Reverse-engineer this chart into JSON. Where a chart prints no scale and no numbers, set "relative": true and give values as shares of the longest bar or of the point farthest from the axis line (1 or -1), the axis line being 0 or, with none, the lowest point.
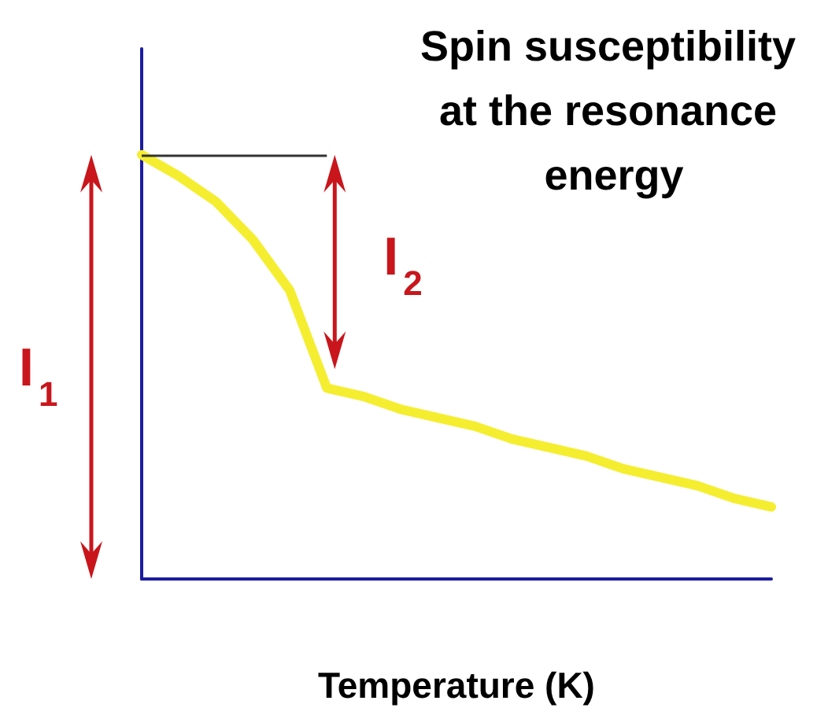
{
  "chart_data": {
    "type": "line",
    "title": "Spin susceptibility at the resonance energy",
    "xlabel": "Temperature (K)",
    "relative": true,
    "categories": [
      null,
      null,
      null,
      null,
      null,
      null,
      null,
      null,
      null,
      null,
      null,
      null,
      null,
      null,
      null,
      null,
      null,
      null
    ],
    "series": [
      {
        "color": "#f5ee30",
        "values": [
          1,
          0.95,
          0.89,
          0.8,
          0.68,
          0.45,
          0.43,
          0.4,
          0.38,
          0.36,
          0.33,
          0.31,
          0.29,
          0.26,
          0.24,
          0.22,
          0.19,
          0.17
        ]
      }
    ],
    "ref_lines": [
      {
        "axis": "y",
        "value": 1,
        "color": "#333333"
      }
    ],
    "annotations": [
      "I$_{1}$",
      "I$_{2}$"
    ],
    "marker": "none"
  }
}
